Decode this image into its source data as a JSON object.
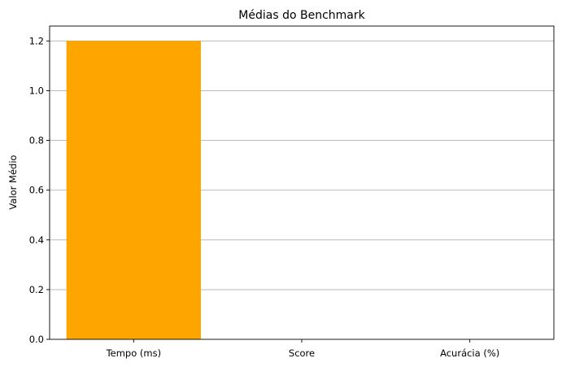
{
  "chart_data": {
    "type": "bar",
    "title": "Médias do Benchmark",
    "xlabel": "",
    "ylabel": "Valor Médio",
    "categories": [
      "Tempo (ms)",
      "Score",
      "Acurácia (%)"
    ],
    "values": [
      1.2,
      0,
      0
    ],
    "ylim": [
      0,
      1.26
    ],
    "yticks": [
      "0.0",
      "0.2",
      "0.4",
      "0.6",
      "0.8",
      "1.0",
      "1.2"
    ],
    "grid": "y",
    "bar_color": "#FFA500"
  }
}
